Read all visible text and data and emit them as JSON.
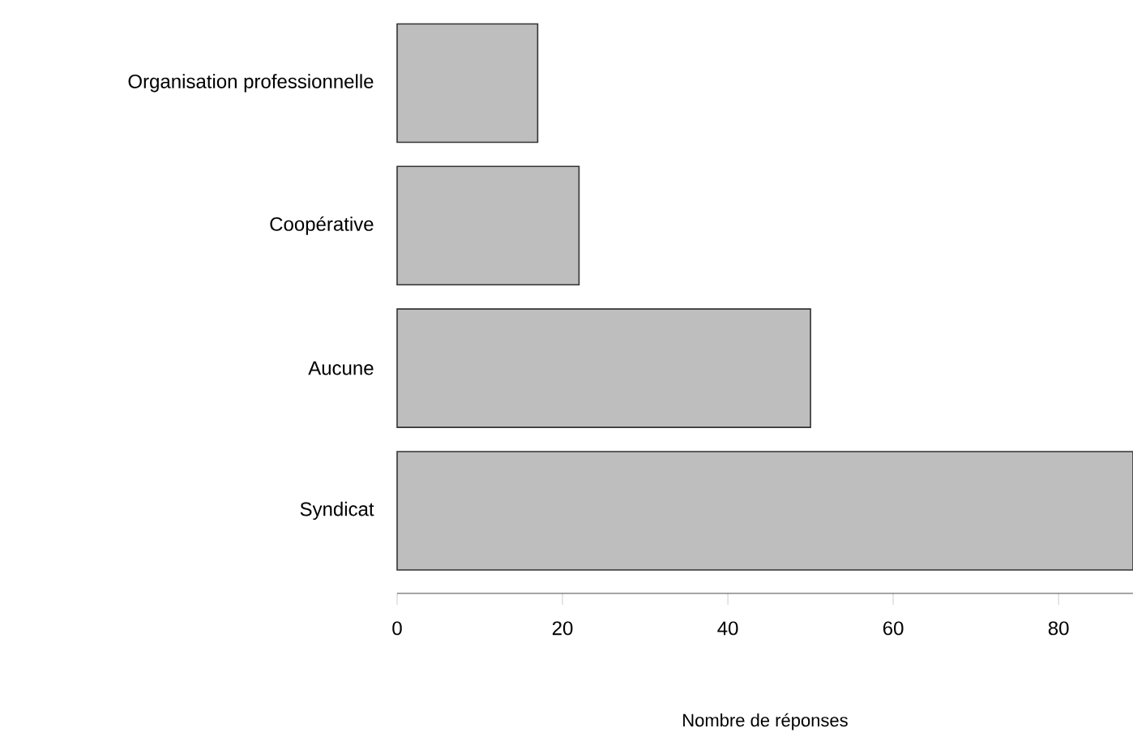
{
  "chart_data": {
    "type": "bar",
    "orientation": "horizontal",
    "categories": [
      "Organisation professionnelle",
      "Coopérative",
      "Aucune",
      "Syndicat"
    ],
    "values": [
      17,
      22,
      50,
      89
    ],
    "color": "#bebebe",
    "xlim": [
      0,
      89
    ],
    "xticks": [
      0,
      20,
      40,
      60,
      80
    ],
    "xlabel": "Nombre de réponses"
  }
}
